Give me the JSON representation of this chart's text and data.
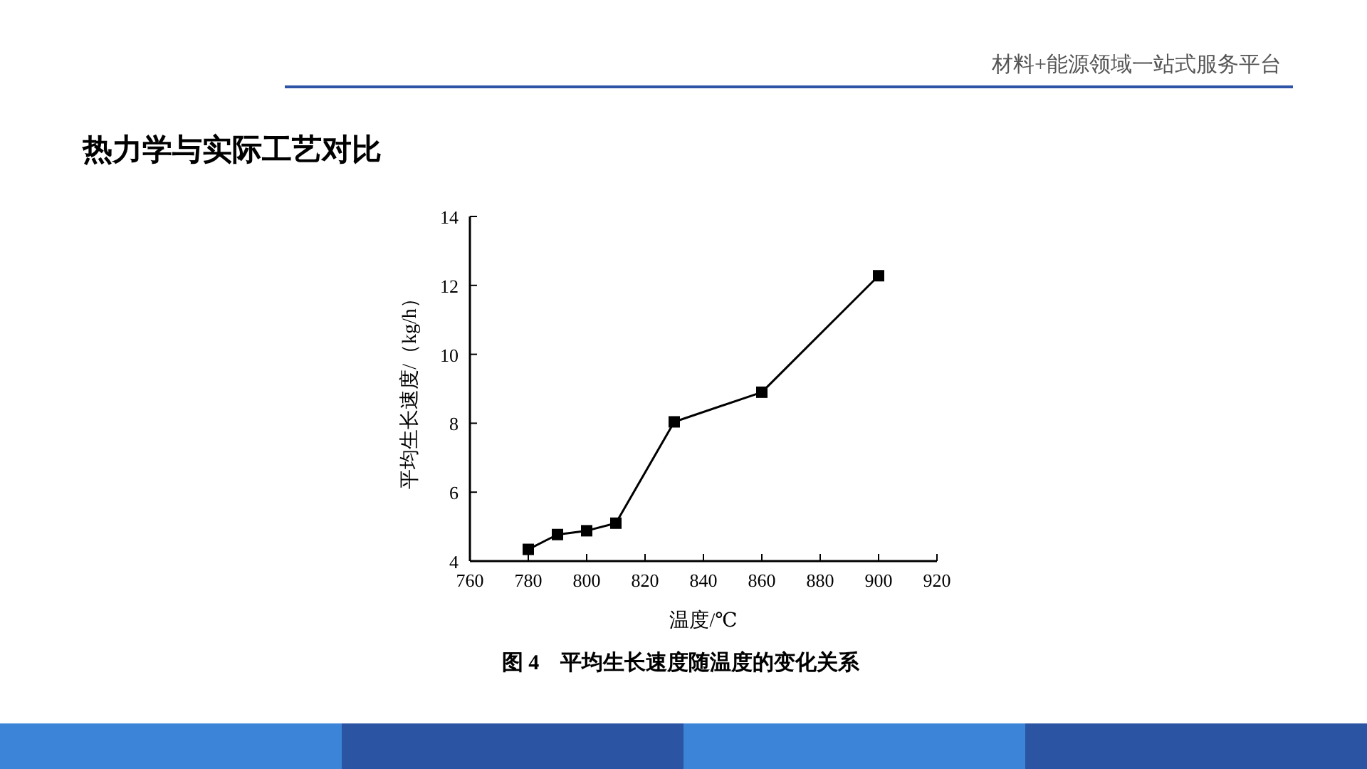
{
  "chart_data": {
    "type": "line",
    "title": "热力学与实际工艺对比",
    "subtitle": "图 4　平均生长速度随温度的变化关系",
    "xlabel": "温度/℃",
    "ylabel": "平均生长速度/（kg/h）",
    "annotations": [
      "材料+能源领域一站式服务平台"
    ],
    "x": [
      780,
      790,
      800,
      810,
      830,
      860,
      900
    ],
    "series": [
      {
        "color": "#000000",
        "values": [
          4.34,
          4.77,
          4.88,
          5.1,
          8.04,
          8.9,
          12.28
        ]
      }
    ],
    "xlim": [
      760,
      920
    ],
    "xticks": [
      760,
      780,
      800,
      820,
      840,
      860,
      880,
      900,
      920
    ],
    "ylim": [
      4,
      14
    ],
    "yticks": [
      4,
      6,
      8,
      10,
      12,
      14
    ],
    "grid": false,
    "marker": "square",
    "line_style": "solid"
  }
}
